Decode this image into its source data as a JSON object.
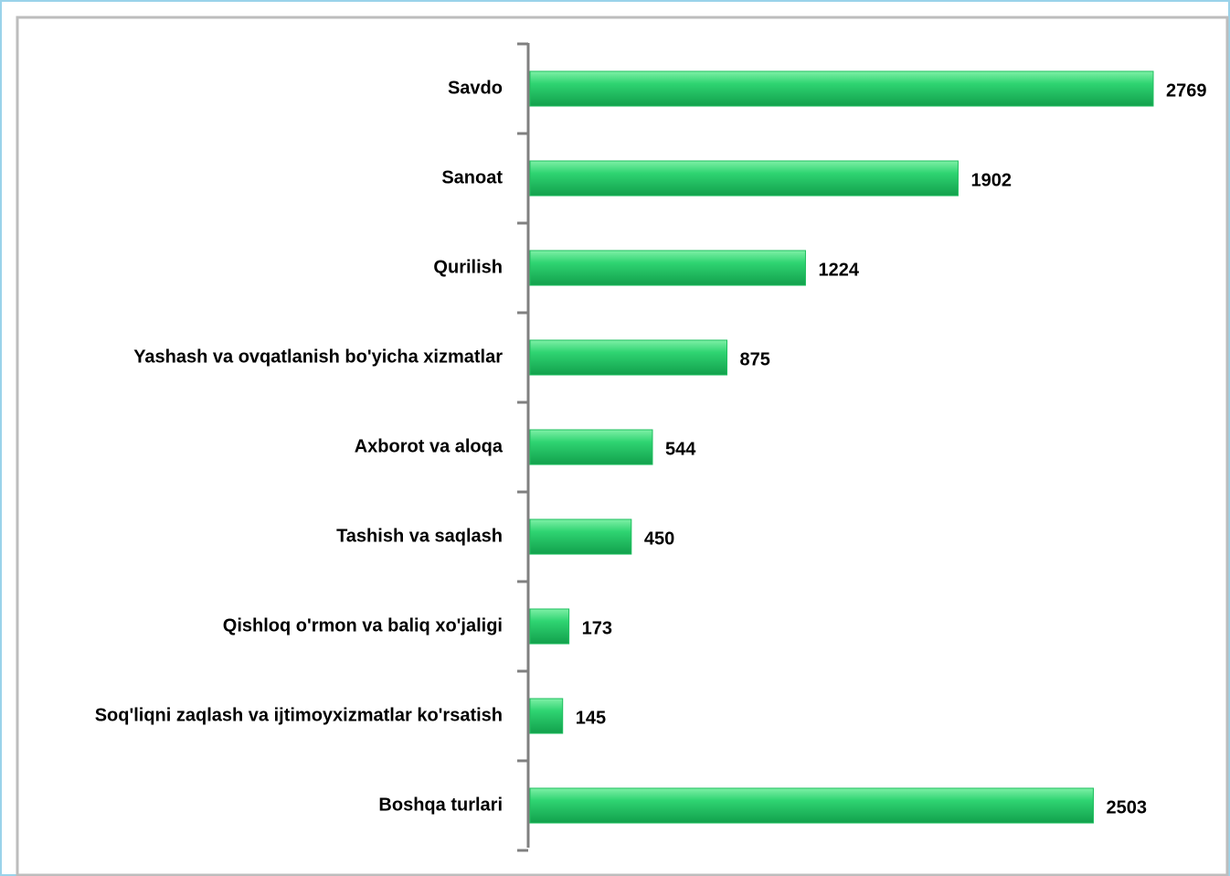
{
  "chart_data": {
    "type": "bar",
    "orientation": "horizontal",
    "categories": [
      "Savdo",
      "Sanoat",
      "Qurilish",
      "Yashash va ovqatlanish  bo'yicha xizmatlar",
      "Axborot va aloqa",
      "Tashish va saqlash",
      "Qishloq o'rmon va baliq xo'jaligi",
      "Soq'liqni zaqlash va ijtimoyxizmatlar ko'rsatish",
      "Boshqa turlari"
    ],
    "values": [
      2769,
      1902,
      1224,
      875,
      544,
      450,
      173,
      145,
      2503
    ],
    "color": "#1fbf5f"
  }
}
